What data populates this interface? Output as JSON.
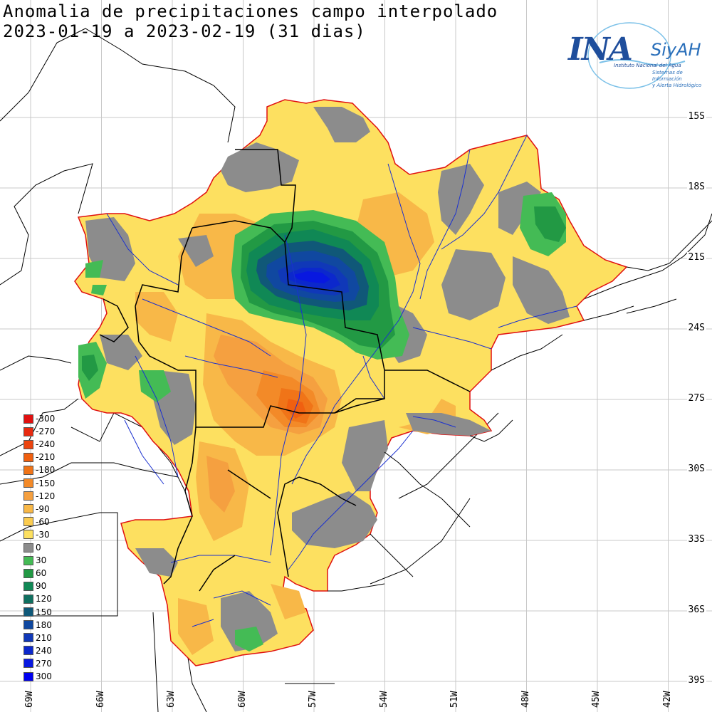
{
  "title": {
    "line1": "Anomalia de precipitaciones campo interpolado",
    "line2": "2023-01-19 a 2023-02-19 (31 dias)"
  },
  "logo": {
    "ina": "INA",
    "siyah": "SiyAH",
    "sub1": "Instituto Nacional del Agua",
    "sub2": "Sistemas de Información",
    "sub3": "y Alerta Hidrológico"
  },
  "latitudes": [
    "15S",
    "18S",
    "21S",
    "24S",
    "27S",
    "30S",
    "33S",
    "36S",
    "39S"
  ],
  "longitudes": [
    "69W",
    "66W",
    "63W",
    "60W",
    "57W",
    "54W",
    "51W",
    "48W",
    "45W",
    "42W"
  ],
  "legend": [
    {
      "label": "-300",
      "color": "#e01010"
    },
    {
      "label": "-270",
      "color": "#e82a10"
    },
    {
      "label": "-240",
      "color": "#ec4510"
    },
    {
      "label": "-210",
      "color": "#f06010"
    },
    {
      "label": "-180",
      "color": "#f07418"
    },
    {
      "label": "-150",
      "color": "#f38a28"
    },
    {
      "label": "-120",
      "color": "#f5a040"
    },
    {
      "label": "-90",
      "color": "#f8b848"
    },
    {
      "label": "-60",
      "color": "#fbcc50"
    },
    {
      "label": "-30",
      "color": "#fde060"
    },
    {
      "label": "0",
      "color": "#8c8c8c"
    },
    {
      "label": "30",
      "color": "#44bb55"
    },
    {
      "label": "60",
      "color": "#229944"
    },
    {
      "label": "90",
      "color": "#108855"
    },
    {
      "label": "120",
      "color": "#107060"
    },
    {
      "label": "150",
      "color": "#105878"
    },
    {
      "label": "180",
      "color": "#1048a0"
    },
    {
      "label": "210",
      "color": "#1038b8"
    },
    {
      "label": "240",
      "color": "#0c28cc"
    },
    {
      "label": "270",
      "color": "#0818e0"
    },
    {
      "label": "300",
      "color": "#0000f0"
    }
  ]
}
